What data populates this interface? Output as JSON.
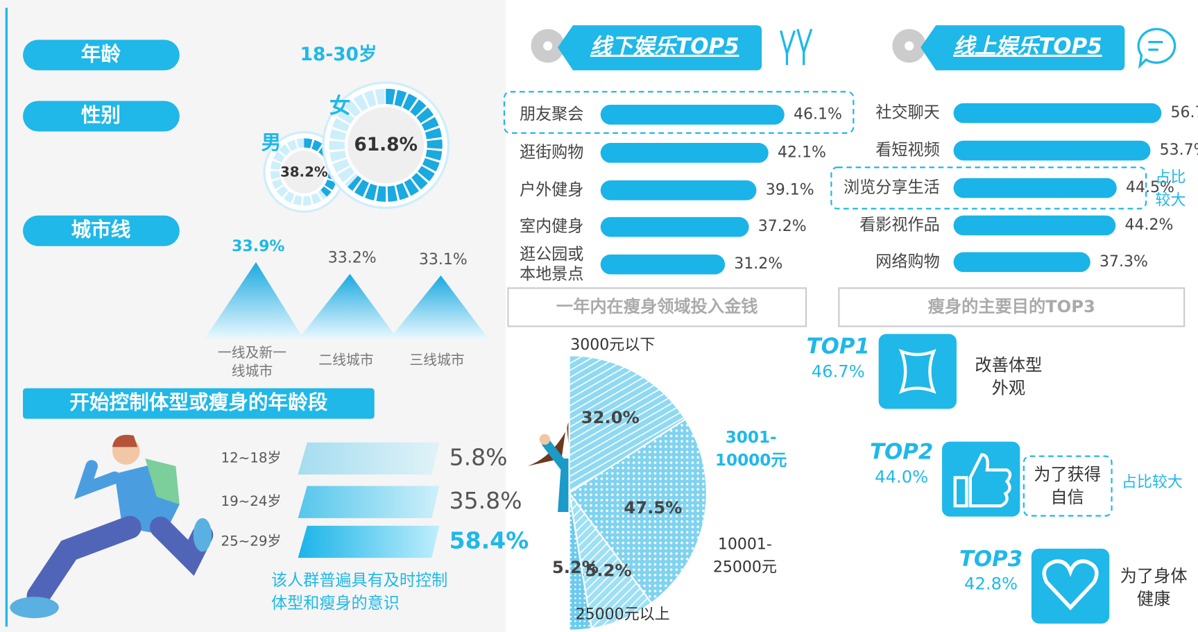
{
  "profile": {
    "label": "年龄",
    "value": "18-30岁"
  },
  "chart_data": [
    {
      "type": "donut",
      "title": "性别",
      "categories": [
        "女",
        "男"
      ],
      "values": [
        61.8,
        38.2
      ],
      "value_labels": [
        "61.8%",
        "38.2%"
      ]
    },
    {
      "type": "mountain",
      "title": "城市线",
      "categories": [
        "一线及新一线城市",
        "二线城市",
        "三线城市"
      ],
      "values": [
        33.9,
        33.2,
        33.1
      ],
      "value_labels": [
        "33.9%",
        "33.2%",
        "33.1%"
      ]
    },
    {
      "type": "bar",
      "title": "开始控制体型或瘦身的年龄段",
      "categories": [
        "12~18岁",
        "19~24岁",
        "25~29岁"
      ],
      "values": [
        5.8,
        35.8,
        58.4
      ],
      "value_labels": [
        "5.8%",
        "35.8%",
        "58.4%"
      ],
      "annotation": "该人群普遍具有及时控制体型和瘦身的意识"
    },
    {
      "type": "bar",
      "title": "线下娱乐TOP5",
      "categories": [
        "朋友聚会",
        "逛街购物",
        "户外健身",
        "室内健身",
        "逛公园或本地景点"
      ],
      "values": [
        46.1,
        42.1,
        39.1,
        37.2,
        31.2
      ],
      "value_labels": [
        "46.1%",
        "42.1%",
        "39.1%",
        "37.2%",
        "31.2%"
      ]
    },
    {
      "type": "bar",
      "title": "线上娱乐TOP5",
      "categories": [
        "社交聊天",
        "看短视频",
        "浏览分享生活",
        "看影视作品",
        "网络购物"
      ],
      "values": [
        56.7,
        53.7,
        44.5,
        44.2,
        37.3
      ],
      "value_labels": [
        "56.7%",
        "53.7%",
        "44.5%",
        "44.2%",
        "37.3%"
      ],
      "annotation": "占比较大"
    },
    {
      "type": "pie",
      "title": "一年内在瘦身领域投入金钱",
      "categories": [
        "3000元以下",
        "3001-10000元",
        "10001-25000元",
        "25000元以上"
      ],
      "values": [
        32.0,
        47.5,
        15.2,
        5.2
      ],
      "value_labels": [
        "32.0%",
        "47.5%",
        "15.2%",
        "5.2%"
      ]
    },
    {
      "type": "rank",
      "title": "瘦身的主要目的TOP3",
      "ranks": [
        "TOP1",
        "TOP2",
        "TOP3"
      ],
      "categories": [
        "改善体型外观",
        "为了获得自信",
        "为了身体健康"
      ],
      "values": [
        46.7,
        44.0,
        42.8
      ],
      "value_labels": [
        "46.7%",
        "44.0%",
        "42.8%"
      ],
      "annotation": "占比较大"
    }
  ]
}
